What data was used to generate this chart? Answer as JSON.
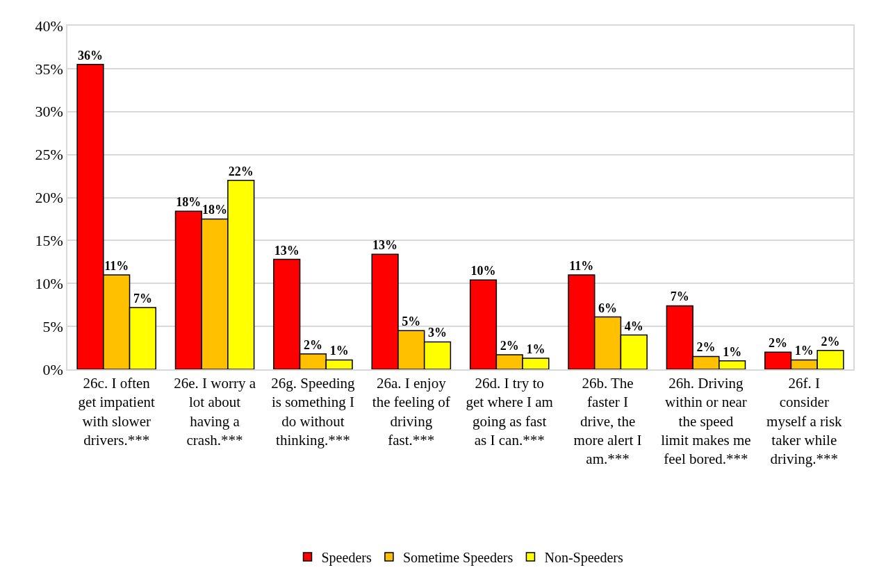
{
  "chart_data": {
    "type": "bar",
    "categories": [
      "26c. I often get impatient with slower drivers.***",
      "26e. I worry a lot about having a crash.***",
      "26g. Speeding is something I do without thinking.***",
      "26a. I enjoy the feeling of driving fast.***",
      "26d. I try to get where I am going as fast as I can.***",
      "26b. The faster I drive, the more alert I am.***",
      "26h. Driving within or near the speed limit makes me feel bored.***",
      "26f. I consider myself a risk taker while driving.***"
    ],
    "series": [
      {
        "name": "Speeders",
        "color": "#ff0000",
        "values": [
          35.5,
          18.4,
          12.8,
          13.4,
          10.4,
          11.0,
          7.4,
          2.0
        ],
        "value_labels": [
          "36%",
          "18%",
          "13%",
          "13%",
          "10%",
          "11%",
          "7%",
          "2%"
        ]
      },
      {
        "name": "Sometime Speeders",
        "color": "#ffc000",
        "values": [
          11.0,
          17.5,
          1.8,
          4.5,
          1.7,
          6.1,
          1.5,
          1.1
        ],
        "value_labels": [
          "11%",
          "18%",
          "2%",
          "5%",
          "2%",
          "6%",
          "2%",
          "1%"
        ]
      },
      {
        "name": "Non-Speeders",
        "color": "#ffff00",
        "values": [
          7.2,
          22.0,
          1.1,
          3.2,
          1.3,
          4.0,
          1.0,
          2.2
        ],
        "value_labels": [
          "7%",
          "22%",
          "1%",
          "3%",
          "1%",
          "4%",
          "1%",
          "2%"
        ]
      }
    ],
    "ylim": [
      0,
      40
    ],
    "yticks": [
      {
        "value": 0,
        "label": "0%"
      },
      {
        "value": 5,
        "label": "5%"
      },
      {
        "value": 10,
        "label": "10%"
      },
      {
        "value": 15,
        "label": "15%"
      },
      {
        "value": 20,
        "label": "20%"
      },
      {
        "value": 25,
        "label": "25%"
      },
      {
        "value": 30,
        "label": "30%"
      },
      {
        "value": 35,
        "label": "35%"
      },
      {
        "value": 40,
        "label": "40%"
      }
    ],
    "grid": "y",
    "legend": "bottom"
  }
}
